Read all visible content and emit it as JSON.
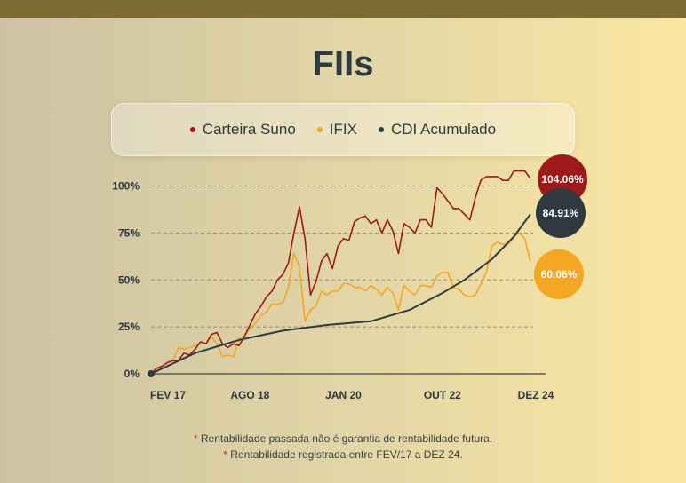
{
  "title": "FIIs",
  "legend": [
    {
      "label": "Carteira Suno",
      "color": "#9c1a1a"
    },
    {
      "label": "IFIX",
      "color": "#f5a623"
    },
    {
      "label": "CDI Acumulado",
      "color": "#2f3a40"
    }
  ],
  "chart_data": {
    "type": "line",
    "ylim": [
      0,
      100
    ],
    "y_ticks": [
      0,
      25,
      50,
      75,
      100
    ],
    "y_tick_labels": [
      "0%",
      "25%",
      "50%",
      "75%",
      "100%"
    ],
    "x_ticks": [
      0,
      18,
      35,
      53,
      70
    ],
    "x_tick_labels": [
      "FEV 17",
      "AGO 18",
      "JAN 20",
      "OUT 22",
      "DEZ 24"
    ],
    "x_tick_note": "x values are an index along the time axis (month positions between FEV/17 and DEZ/24)",
    "grid": "dashed horizontal at 25%, 50%, 75%, 100%",
    "series": [
      {
        "name": "Carteira Suno",
        "color": "#9c1a1a",
        "end_label": "104.06%",
        "points": [
          [
            0,
            0
          ],
          [
            1,
            3
          ],
          [
            2,
            4
          ],
          [
            3,
            6
          ],
          [
            4,
            7
          ],
          [
            5,
            7
          ],
          [
            6,
            11
          ],
          [
            7,
            10
          ],
          [
            8,
            13
          ],
          [
            9,
            17
          ],
          [
            10,
            16
          ],
          [
            11,
            21
          ],
          [
            12,
            22
          ],
          [
            13,
            16
          ],
          [
            14,
            14
          ],
          [
            15,
            16
          ],
          [
            16,
            15
          ],
          [
            17,
            20
          ],
          [
            18,
            26
          ],
          [
            19,
            32
          ],
          [
            20,
            36
          ],
          [
            21,
            41
          ],
          [
            22,
            44
          ],
          [
            23,
            50
          ],
          [
            24,
            53
          ],
          [
            25,
            59
          ],
          [
            26,
            75
          ],
          [
            27,
            89
          ],
          [
            28,
            72
          ],
          [
            29,
            42
          ],
          [
            30,
            49
          ],
          [
            31,
            60
          ],
          [
            32,
            64
          ],
          [
            33,
            56
          ],
          [
            34,
            68
          ],
          [
            35,
            72
          ],
          [
            36,
            71
          ],
          [
            37,
            81
          ],
          [
            38,
            83
          ],
          [
            39,
            84
          ],
          [
            40,
            80
          ],
          [
            41,
            82
          ],
          [
            42,
            75
          ],
          [
            43,
            82
          ],
          [
            44,
            76
          ],
          [
            45,
            64
          ],
          [
            46,
            80
          ],
          [
            47,
            78
          ],
          [
            48,
            75
          ],
          [
            49,
            82
          ],
          [
            50,
            82
          ],
          [
            51,
            78
          ],
          [
            52,
            99
          ],
          [
            53,
            96
          ],
          [
            54,
            92
          ],
          [
            55,
            88
          ],
          [
            56,
            88
          ],
          [
            57,
            85
          ],
          [
            58,
            82
          ],
          [
            59,
            94
          ],
          [
            60,
            103
          ],
          [
            61,
            105
          ],
          [
            62,
            105
          ],
          [
            63,
            105
          ],
          [
            64,
            103
          ],
          [
            65,
            103
          ],
          [
            66,
            108
          ],
          [
            67,
            108
          ],
          [
            68,
            108
          ],
          [
            69,
            104.06
          ]
        ]
      },
      {
        "name": "IFIX",
        "color": "#f5a623",
        "end_label": "60.06%",
        "points": [
          [
            0,
            0
          ],
          [
            1,
            2
          ],
          [
            2,
            4
          ],
          [
            3,
            6
          ],
          [
            4,
            7
          ],
          [
            5,
            14
          ],
          [
            6,
            13
          ],
          [
            7,
            14
          ],
          [
            8,
            15
          ],
          [
            9,
            17
          ],
          [
            10,
            16
          ],
          [
            11,
            20
          ],
          [
            12,
            16
          ],
          [
            13,
            9
          ],
          [
            14,
            10
          ],
          [
            15,
            9
          ],
          [
            16,
            19
          ],
          [
            17,
            20
          ],
          [
            18,
            24
          ],
          [
            19,
            27
          ],
          [
            20,
            31
          ],
          [
            21,
            33
          ],
          [
            22,
            37
          ],
          [
            23,
            37
          ],
          [
            24,
            38
          ],
          [
            25,
            46
          ],
          [
            26,
            64
          ],
          [
            27,
            57
          ],
          [
            28,
            28
          ],
          [
            29,
            34
          ],
          [
            30,
            36
          ],
          [
            31,
            44
          ],
          [
            32,
            42
          ],
          [
            33,
            44
          ],
          [
            34,
            44
          ],
          [
            35,
            48
          ],
          [
            36,
            48
          ],
          [
            37,
            46
          ],
          [
            38,
            46
          ],
          [
            39,
            44
          ],
          [
            40,
            47
          ],
          [
            41,
            45
          ],
          [
            42,
            42
          ],
          [
            43,
            46
          ],
          [
            44,
            43
          ],
          [
            45,
            34
          ],
          [
            46,
            47
          ],
          [
            47,
            44
          ],
          [
            48,
            42
          ],
          [
            49,
            47
          ],
          [
            50,
            47
          ],
          [
            51,
            46
          ],
          [
            52,
            52
          ],
          [
            53,
            54
          ],
          [
            54,
            54
          ],
          [
            55,
            46
          ],
          [
            56,
            45
          ],
          [
            57,
            42
          ],
          [
            58,
            41
          ],
          [
            59,
            42
          ],
          [
            60,
            48
          ],
          [
            61,
            54
          ],
          [
            62,
            68
          ],
          [
            63,
            70
          ],
          [
            64,
            69
          ],
          [
            65,
            69
          ],
          [
            66,
            73
          ],
          [
            67,
            75
          ],
          [
            68,
            72
          ],
          [
            69,
            60.06
          ]
        ]
      },
      {
        "name": "CDI Acumulado",
        "color": "#2f3a40",
        "end_label": "84.91%",
        "points": [
          [
            0,
            0
          ],
          [
            8,
            11
          ],
          [
            16,
            18
          ],
          [
            24,
            23
          ],
          [
            32,
            26
          ],
          [
            40,
            28
          ],
          [
            47,
            34
          ],
          [
            53,
            43
          ],
          [
            57,
            50
          ],
          [
            62,
            61
          ],
          [
            66,
            73
          ],
          [
            69,
            84.91
          ]
        ]
      }
    ]
  },
  "footnotes": [
    "Rentabilidade passada não é garantia de rentabilidade futura.",
    "Rentabilidade registrada entre FEV/17 a DEZ 24."
  ],
  "footnote_marker": "*"
}
